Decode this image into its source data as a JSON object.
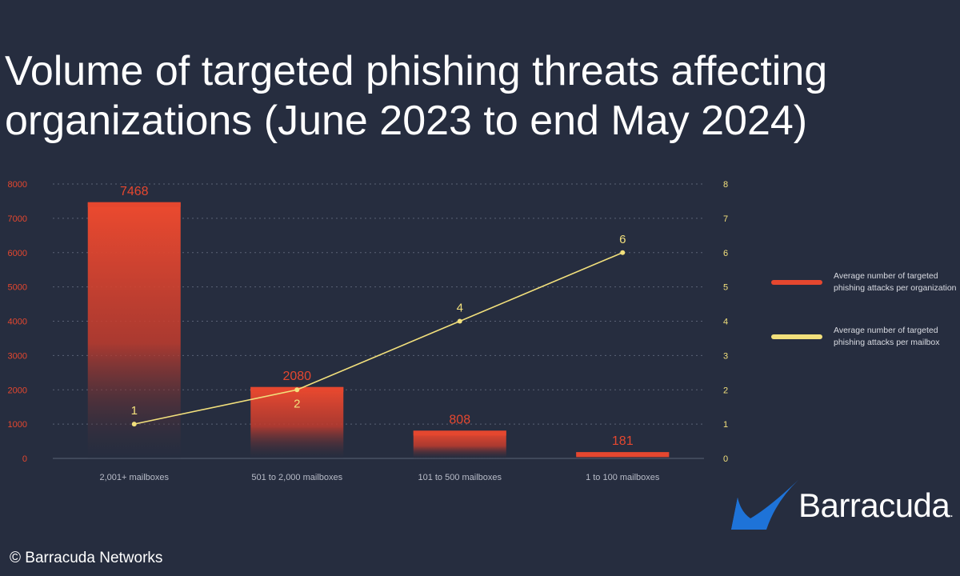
{
  "page": {
    "title_line1": "Volume of targeted phishing threats affecting",
    "title_line2": "organizations (June 2023 to end May 2024)",
    "copyright": "© Barracuda Networks"
  },
  "brand": {
    "name": "Barracuda",
    "symbol": "."
  },
  "colors": {
    "background": "#262d3f",
    "bar": "#e5472f",
    "line": "#f2e07c",
    "grid": "#5a6275",
    "tick": "#e5472f",
    "tick_right": "#f2e07c",
    "logo": "#1e73d8"
  },
  "chart_data": {
    "type": "bar",
    "title": "Volume of targeted phishing threats affecting organizations (June 2023 to end May 2024)",
    "categories": [
      "2,001+ mailboxes",
      "501 to 2,000 mailboxes",
      "101 to 500 mailboxes",
      "1 to 100 mailboxes"
    ],
    "series": [
      {
        "name": "Average number of targeted phishing attacks per organization",
        "type": "bar",
        "axis": "left",
        "values": [
          7468,
          2080,
          808,
          181
        ],
        "labels": [
          "7468",
          "2080",
          "808",
          "181"
        ]
      },
      {
        "name": "Average number of targeted phishing attacks per mailbox",
        "type": "line",
        "axis": "right",
        "values": [
          1,
          2,
          4,
          6
        ],
        "labels": [
          "1",
          "2",
          "4",
          "6"
        ]
      }
    ],
    "y_left": {
      "min": 0,
      "max": 8000,
      "ticks": [
        "0",
        "1000",
        "2000",
        "3000",
        "4000",
        "5000",
        "6000",
        "7000",
        "8000"
      ]
    },
    "y_right": {
      "min": 0,
      "max": 8,
      "ticks": [
        "0",
        "1",
        "2",
        "3",
        "4",
        "5",
        "6",
        "7",
        "8"
      ]
    },
    "grid": true,
    "legend_position": "right",
    "legend": [
      {
        "label_line1": "Average number of targeted",
        "label_line2": "phishing attacks per organization",
        "marker": "bar"
      },
      {
        "label_line1": "Average number of targeted",
        "label_line2": "phishing attacks per mailbox",
        "marker": "line"
      }
    ]
  }
}
